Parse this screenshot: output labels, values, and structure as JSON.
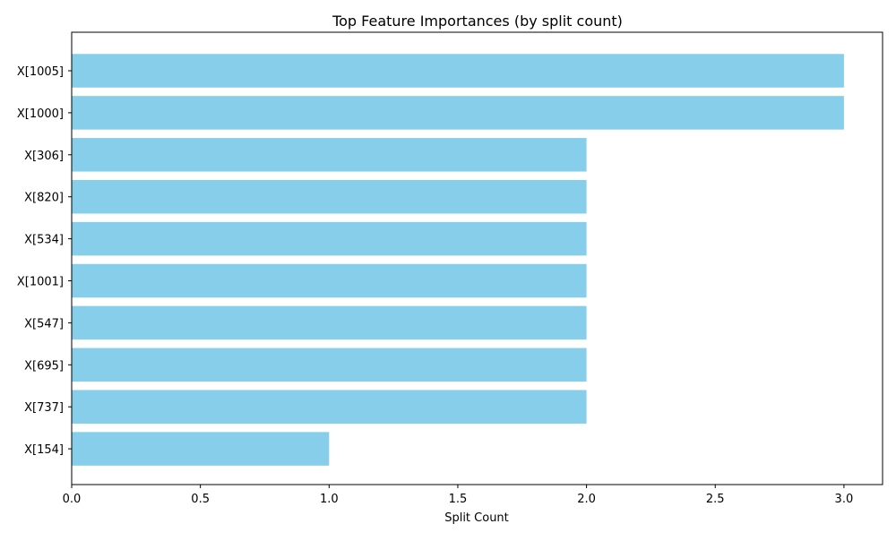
{
  "chart_data": {
    "type": "bar",
    "orientation": "horizontal",
    "title": "Top Feature Importances (by split count)",
    "xlabel": "Split Count",
    "ylabel": "",
    "categories": [
      "X[1005]",
      "X[1000]",
      "X[306]",
      "X[820]",
      "X[534]",
      "X[1001]",
      "X[547]",
      "X[695]",
      "X[737]",
      "X[154]"
    ],
    "values": [
      3,
      3,
      2,
      2,
      2,
      2,
      2,
      2,
      2,
      1
    ],
    "xlim": [
      0,
      3.15
    ],
    "x_ticks": [
      "0.0",
      "0.5",
      "1.0",
      "1.5",
      "2.0",
      "2.5",
      "3.0"
    ],
    "x_tick_values": [
      0,
      0.5,
      1.0,
      1.5,
      2.0,
      2.5,
      3.0
    ],
    "bar_color": "#87ceeb",
    "grid": false,
    "legend": "none"
  }
}
